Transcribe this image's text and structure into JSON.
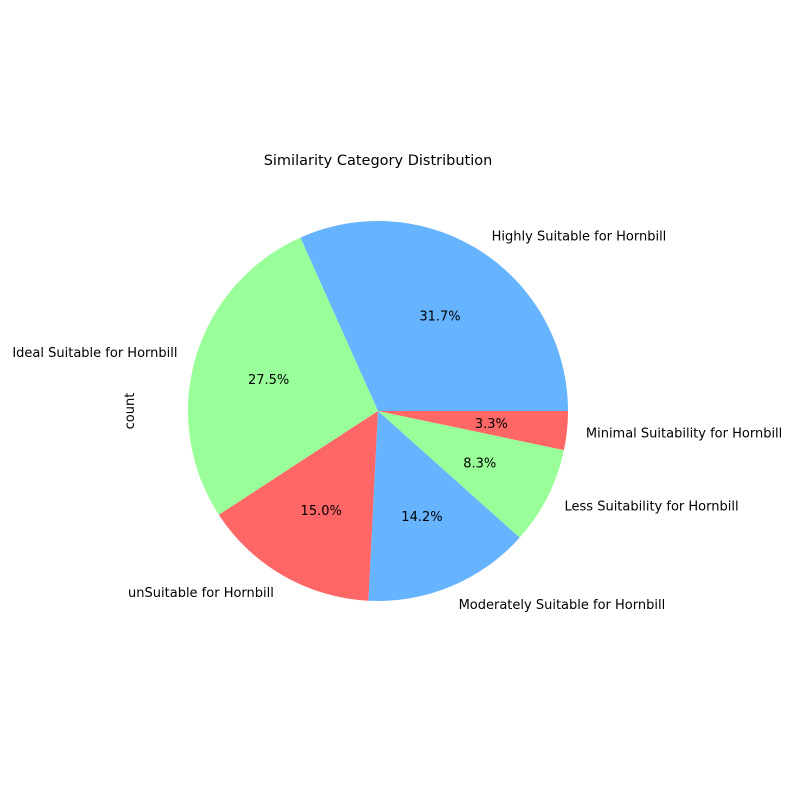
{
  "chart_data": {
    "type": "pie",
    "title": "Similarity Category Distribution",
    "ylabel": "count",
    "slices": [
      {
        "label": "Highly Suitable for Hornbill",
        "percent": 31.7,
        "pct_text": "31.7%",
        "color": "#66b3ff"
      },
      {
        "label": "Ideal Suitable for Hornbill",
        "percent": 27.5,
        "pct_text": "27.5%",
        "color": "#99ff99"
      },
      {
        "label": "unSuitable for Hornbill",
        "percent": 15.0,
        "pct_text": "15.0%",
        "color": "#ff6666"
      },
      {
        "label": "Moderately Suitable for Hornbill",
        "percent": 14.2,
        "pct_text": "14.2%",
        "color": "#66b3ff"
      },
      {
        "label": "Less Suitability for Hornbill",
        "percent": 8.3,
        "pct_text": "8.3%",
        "color": "#99ff99"
      },
      {
        "label": "Minimal Suitability for Hornbill",
        "percent": 3.3,
        "pct_text": "3.3%",
        "color": "#ff6666"
      }
    ],
    "start_angle_deg": 0,
    "direction": "counterclockwise",
    "legend": "none"
  }
}
